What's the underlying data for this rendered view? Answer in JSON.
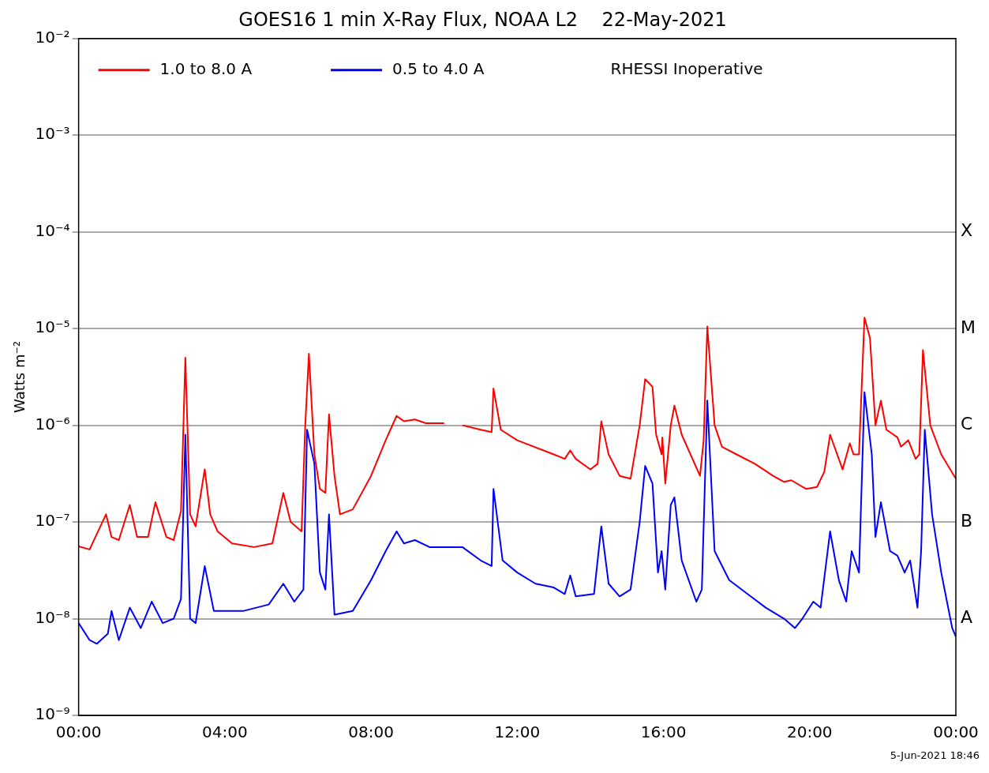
{
  "chart_data": {
    "type": "line",
    "title": "GOES16 1 min X-Ray Flux, NOAA L2    22-May-2021",
    "ylabel": "Watts m⁻²",
    "annotations": [
      "RHESSI Inoperative",
      "5-Jun-2021 18:46",
      "A",
      "B",
      "C",
      "M",
      "X"
    ],
    "log": "y",
    "legend": "top left",
    "grid": "y",
    "xlim": [
      0,
      24
    ],
    "xticks": [
      {
        "value": 0,
        "label": "00:00"
      },
      {
        "value": 4,
        "label": "04:00"
      },
      {
        "value": 8,
        "label": "08:00"
      },
      {
        "value": 12,
        "label": "12:00"
      },
      {
        "value": 16,
        "label": "16:00"
      },
      {
        "value": 20,
        "label": "20:00"
      },
      {
        "value": 24,
        "label": "00:00"
      }
    ],
    "ylim": [
      1e-09,
      0.01
    ],
    "yticks": [
      {
        "value": 1e-09,
        "label": "10⁻⁹"
      },
      {
        "value": 1e-08,
        "label": "10⁻⁸"
      },
      {
        "value": 1e-07,
        "label": "10⁻⁷"
      },
      {
        "value": 1e-06,
        "label": "10⁻⁶"
      },
      {
        "value": 1e-05,
        "label": "10⁻⁵"
      },
      {
        "value": 0.0001,
        "label": "10⁻⁴"
      },
      {
        "value": 0.001,
        "label": "10⁻³"
      },
      {
        "value": 0.01,
        "label": "10⁻²"
      }
    ],
    "series": [
      {
        "name": "1.0 to 8.0 A",
        "color": "#ff0000",
        "x": [
          0,
          0.3,
          0.75,
          0.9,
          1.1,
          1.4,
          1.6,
          1.9,
          2.1,
          2.4,
          2.6,
          2.8,
          2.92,
          3.05,
          3.2,
          3.45,
          3.6,
          3.8,
          4.2,
          4.8,
          5.3,
          5.6,
          5.8,
          6.1,
          6.2,
          6.3,
          6.45,
          6.6,
          6.75,
          6.85,
          7,
          7.15,
          7.5,
          8,
          8.4,
          8.7,
          8.9,
          9.2,
          9.5,
          10,
          10.2,
          10.5,
          11,
          11.3,
          11.35,
          11.55,
          12,
          13,
          13.3,
          13.45,
          13.6,
          14,
          14.2,
          14.3,
          14.5,
          14.8,
          15.1,
          15.35,
          15.5,
          15.7,
          15.8,
          15.95,
          15.97,
          16.05,
          16.2,
          16.3,
          16.5,
          17,
          17.1,
          17.2,
          17.4,
          17.6,
          18,
          18.5,
          19,
          19.3,
          19.5,
          19.9,
          20.2,
          20.4,
          20.56,
          20.9,
          21.1,
          21.2,
          21.35,
          21.5,
          21.65,
          21.8,
          21.95,
          22.1,
          22.4,
          22.5,
          22.7,
          22.9,
          23,
          23.1,
          23.3,
          23.6,
          24
        ],
        "values": [
          5.6e-08,
          5.2e-08,
          1.2e-07,
          7e-08,
          6.5e-08,
          1.5e-07,
          7e-08,
          7e-08,
          1.6e-07,
          7e-08,
          6.5e-08,
          1.3e-07,
          5e-06,
          1.2e-07,
          9e-08,
          3.5e-07,
          1.2e-07,
          8e-08,
          6e-08,
          5.5e-08,
          6e-08,
          2e-07,
          1e-07,
          8e-08,
          1e-06,
          5.5e-06,
          5e-07,
          2.2e-07,
          2e-07,
          1.3e-06,
          3e-07,
          1.2e-07,
          1.35e-07,
          3e-07,
          7e-07,
          1.25e-06,
          1.1e-06,
          1.15e-06,
          1.05e-06,
          1.05e-06,
          null,
          1e-06,
          9e-07,
          8.5e-07,
          2.4e-06,
          9e-07,
          7e-07,
          5e-07,
          4.5e-07,
          5.5e-07,
          4.5e-07,
          3.5e-07,
          4e-07,
          1.1e-06,
          5e-07,
          3e-07,
          2.8e-07,
          1e-06,
          3e-06,
          2.5e-06,
          8e-07,
          5e-07,
          7.5e-07,
          2.5e-07,
          1e-06,
          1.6e-06,
          8e-07,
          3e-07,
          7e-07,
          1.05e-05,
          1e-06,
          6e-07,
          5e-07,
          4e-07,
          3e-07,
          2.6e-07,
          2.7e-07,
          2.2e-07,
          2.3e-07,
          3.3e-07,
          8e-07,
          3.5e-07,
          6.5e-07,
          5e-07,
          5e-07,
          1.3e-05,
          8e-06,
          1e-06,
          1.8e-06,
          9e-07,
          7.5e-07,
          6e-07,
          7e-07,
          4.5e-07,
          5e-07,
          6e-06,
          1e-06,
          5e-07,
          2.8e-07
        ]
      },
      {
        "name": "0.5 to 4.0 A",
        "color": "#0000ff",
        "x": [
          0,
          0.3,
          0.5,
          0.8,
          0.9,
          1.1,
          1.4,
          1.7,
          2,
          2.3,
          2.6,
          2.8,
          2.92,
          3.05,
          3.2,
          3.45,
          3.7,
          4.5,
          5.2,
          5.6,
          5.9,
          6.15,
          6.25,
          6.45,
          6.6,
          6.75,
          6.85,
          7,
          7.5,
          8,
          8.4,
          8.7,
          8.9,
          9.2,
          9.6,
          10.5,
          11,
          11.3,
          11.35,
          11.6,
          12,
          12.5,
          13,
          13.3,
          13.45,
          13.6,
          14.1,
          14.3,
          14.5,
          14.8,
          15.1,
          15.35,
          15.5,
          15.7,
          15.85,
          15.95,
          16.05,
          16.2,
          16.3,
          16.5,
          16.9,
          17.05,
          17.2,
          17.4,
          17.8,
          18.3,
          18.8,
          19.3,
          19.6,
          19.8,
          20.1,
          20.3,
          20.56,
          20.8,
          21,
          21.15,
          21.35,
          21.5,
          21.7,
          21.8,
          21.95,
          22.2,
          22.4,
          22.6,
          22.75,
          22.95,
          23.05,
          23.15,
          23.35,
          23.6,
          23.9,
          24
        ],
        "values": [
          9e-09,
          6e-09,
          5.5e-09,
          7e-09,
          1.2e-08,
          6e-09,
          1.3e-08,
          8e-09,
          1.5e-08,
          9e-09,
          1e-08,
          1.6e-08,
          8e-07,
          1e-08,
          9e-09,
          3.5e-08,
          1.2e-08,
          1.2e-08,
          1.4e-08,
          2.3e-08,
          1.5e-08,
          2e-08,
          9e-07,
          4e-07,
          3e-08,
          2e-08,
          1.2e-07,
          1.1e-08,
          1.2e-08,
          2.5e-08,
          5e-08,
          8e-08,
          6e-08,
          6.5e-08,
          5.5e-08,
          5.5e-08,
          4e-08,
          3.5e-08,
          2.2e-07,
          4e-08,
          3e-08,
          2.3e-08,
          2.1e-08,
          1.8e-08,
          2.8e-08,
          1.7e-08,
          1.8e-08,
          9e-08,
          2.3e-08,
          1.7e-08,
          2e-08,
          1e-07,
          3.8e-07,
          2.5e-07,
          3e-08,
          5e-08,
          2e-08,
          1.5e-07,
          1.8e-07,
          4e-08,
          1.5e-08,
          2e-08,
          1.8e-06,
          5e-08,
          2.5e-08,
          1.8e-08,
          1.3e-08,
          1e-08,
          8e-09,
          1e-08,
          1.5e-08,
          1.3e-08,
          8e-08,
          2.5e-08,
          1.5e-08,
          5e-08,
          3e-08,
          2.2e-06,
          5e-07,
          7e-08,
          1.6e-07,
          5e-08,
          4.5e-08,
          3e-08,
          4e-08,
          1.3e-08,
          5e-08,
          9e-07,
          1.2e-07,
          3e-08,
          8e-09,
          6.5e-09
        ]
      }
    ]
  }
}
